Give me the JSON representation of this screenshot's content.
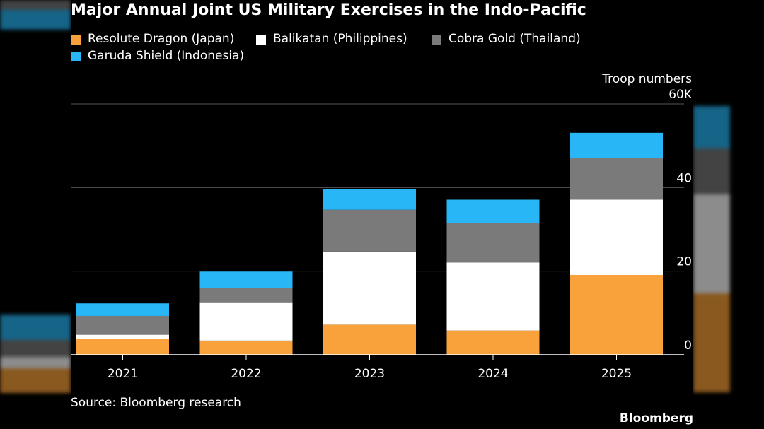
{
  "title": "Major Annual Joint US Military Exercises in the Indo-Pacific",
  "source": "Source: Bloomberg research",
  "brand": "Bloomberg",
  "colors": {
    "background": "#000000",
    "gridline": "#555555",
    "axis": "#ffffff"
  },
  "chart_data": {
    "type": "bar",
    "stacked": true,
    "categories": [
      "2021",
      "2022",
      "2023",
      "2024",
      "2025"
    ],
    "series": [
      {
        "name": "Resolute Dragon (Japan)",
        "color": "#f9a23b",
        "values": [
          3.8,
          3.4,
          7.2,
          5.8,
          19.1
        ]
      },
      {
        "name": "Balikatan (Philippines)",
        "color": "#ffffff",
        "values": [
          1.0,
          9.0,
          17.5,
          16.3,
          18.0
        ]
      },
      {
        "name": "Cobra Gold (Thailand)",
        "color": "#7a7a7a",
        "values": [
          4.5,
          3.5,
          10.0,
          9.5,
          10.0
        ]
      },
      {
        "name": "Garuda Shield (Indonesia)",
        "color": "#29b6f6",
        "values": [
          3.0,
          4.0,
          5.0,
          5.5,
          6.0
        ]
      }
    ],
    "ylabel": "Troop numbers",
    "ylim": [
      0,
      60
    ],
    "yticks": [
      0,
      20,
      40,
      60
    ],
    "ytick_labels": [
      "0",
      "20",
      "40",
      "60K"
    ],
    "grid": true,
    "legend_position": "top-left",
    "y_axis_side": "right"
  }
}
